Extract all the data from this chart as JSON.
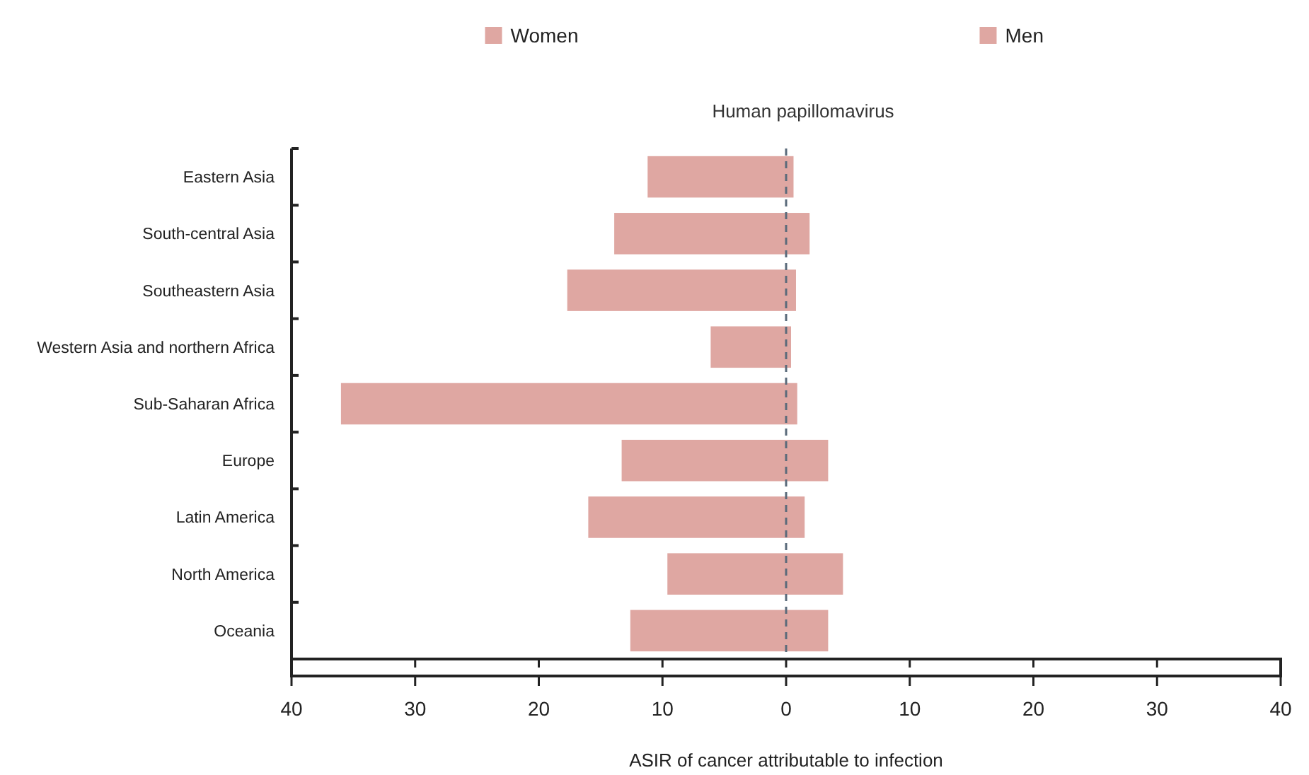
{
  "chart_data": {
    "type": "bar",
    "orientation": "horizontal",
    "stacked": true,
    "subtitle": "Human papillomavirus",
    "xlabel": "ASIR of cancer attributable to infection",
    "categories": [
      "Eastern Asia",
      "South-central Asia",
      "Southeastern Asia",
      "Western Asia and northern Africa",
      "Sub-Saharan Africa",
      "Europe",
      "Latin America",
      "North America",
      "Oceania"
    ],
    "series": [
      {
        "name": "Women",
        "color": "#dfa7a2",
        "values": [
          -11.2,
          -13.9,
          -17.7,
          -6.1,
          -36.0,
          -13.3,
          -16.0,
          -9.6,
          -12.6
        ]
      },
      {
        "name": "Men",
        "color": "#dfa7a2",
        "values": [
          0.6,
          1.9,
          0.8,
          0.4,
          0.9,
          3.4,
          1.5,
          4.6,
          3.4
        ]
      }
    ],
    "xlim": [
      -40,
      40
    ],
    "xticks": [
      {
        "value": -40,
        "label": "40"
      },
      {
        "value": -30,
        "label": "30"
      },
      {
        "value": -20,
        "label": "20"
      },
      {
        "value": -10,
        "label": "10"
      },
      0,
      10,
      20,
      30,
      40
    ],
    "ref_lines": [
      {
        "axis": "x",
        "value": 0,
        "color": "#5a6a7a",
        "line_style": "dashed"
      }
    ],
    "legend": "top",
    "grid": false
  }
}
